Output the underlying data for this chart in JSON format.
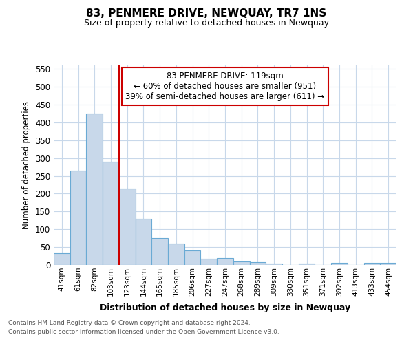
{
  "title": "83, PENMERE DRIVE, NEWQUAY, TR7 1NS",
  "subtitle": "Size of property relative to detached houses in Newquay",
  "xlabel": "Distribution of detached houses by size in Newquay",
  "ylabel": "Number of detached properties",
  "categories": [
    "41sqm",
    "61sqm",
    "82sqm",
    "103sqm",
    "123sqm",
    "144sqm",
    "165sqm",
    "185sqm",
    "206sqm",
    "227sqm",
    "247sqm",
    "268sqm",
    "289sqm",
    "309sqm",
    "330sqm",
    "351sqm",
    "371sqm",
    "392sqm",
    "413sqm",
    "433sqm",
    "454sqm"
  ],
  "values": [
    32,
    265,
    425,
    290,
    215,
    130,
    75,
    60,
    40,
    17,
    20,
    10,
    8,
    3,
    0,
    3,
    0,
    5,
    0,
    5,
    5
  ],
  "bar_color": "#c8d8ea",
  "bar_edge_color": "#6aaad4",
  "grid_color": "#c8d8ea",
  "annotation_text": "83 PENMERE DRIVE: 119sqm\n← 60% of detached houses are smaller (951)\n39% of semi-detached houses are larger (611) →",
  "annotation_box_color": "white",
  "annotation_box_edge": "#cc0000",
  "vline_color": "#cc0000",
  "vline_pos": 3.5,
  "ylim": [
    0,
    560
  ],
  "yticks": [
    0,
    50,
    100,
    150,
    200,
    250,
    300,
    350,
    400,
    450,
    500,
    550
  ],
  "footer1": "Contains HM Land Registry data © Crown copyright and database right 2024.",
  "footer2": "Contains public sector information licensed under the Open Government Licence v3.0.",
  "background_color": "#ffffff",
  "plot_bg_color": "#ffffff"
}
